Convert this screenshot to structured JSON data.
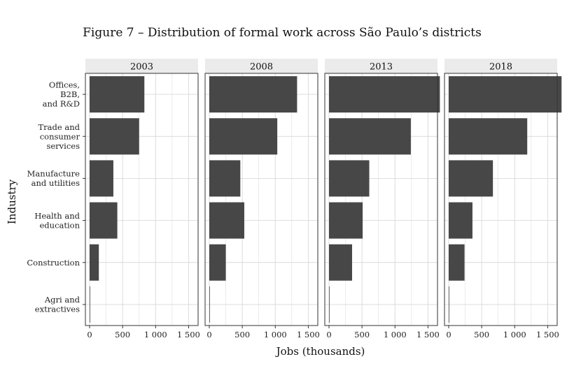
{
  "chart_data": {
    "type": "bar",
    "orientation": "horizontal",
    "title": "Figure 7 – Distribution of formal work across São Paulo’s districts",
    "xlabel": "Jobs (thousands)",
    "ylabel": "Industry",
    "xlim": [
      0,
      1750
    ],
    "x_ticks": [
      0,
      500,
      1000,
      1500
    ],
    "x_tick_labels": [
      "0",
      "500",
      "1 000",
      "1 500"
    ],
    "grid": true,
    "categories": [
      [
        "Offices,",
        "B2B,",
        "and R&D"
      ],
      [
        "Trade and",
        "consumer",
        "services"
      ],
      [
        "Manufacture",
        "and utilities"
      ],
      [
        "Health and",
        "education"
      ],
      [
        "Construction"
      ],
      [
        "Agri and",
        "extractives"
      ]
    ],
    "panels": [
      {
        "label": "2003",
        "values": [
          830,
          750,
          360,
          420,
          140,
          8
        ]
      },
      {
        "label": "2008",
        "values": [
          1330,
          1030,
          470,
          530,
          250,
          8
        ]
      },
      {
        "label": "2013",
        "values": [
          1680,
          1240,
          610,
          510,
          350,
          8
        ]
      },
      {
        "label": "2018",
        "values": [
          1710,
          1190,
          670,
          360,
          240,
          8
        ]
      }
    ],
    "colors": {
      "bar": "#474747",
      "strip": "#ebebeb",
      "grid": "#d9d9d9",
      "panel_border": "#333333"
    }
  }
}
